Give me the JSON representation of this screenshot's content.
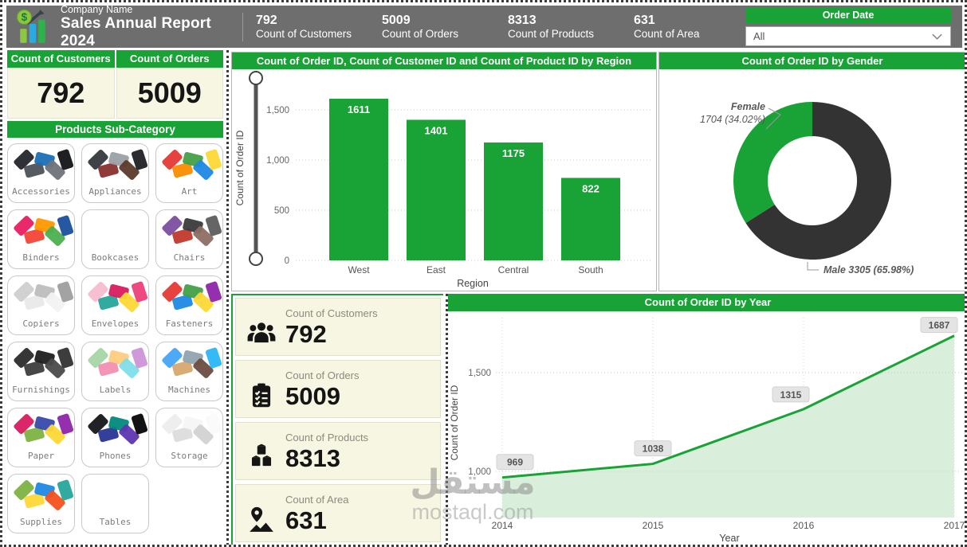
{
  "header": {
    "company_name": "Company Name",
    "report_title": "Sales Annual Report 2024",
    "kpis": [
      {
        "value": "792",
        "label": "Count of Customers"
      },
      {
        "value": "5009",
        "label": "Count of Orders"
      },
      {
        "value": "8313",
        "label": "Count of Products"
      },
      {
        "value": "631",
        "label": "Count of Area"
      }
    ],
    "slicer": {
      "title": "Order Date",
      "value": "All"
    }
  },
  "left_panel": {
    "cards": [
      {
        "label": "Count of Customers",
        "value": "792"
      },
      {
        "label": "Count of Orders",
        "value": "5009"
      }
    ],
    "subcategory_header": "Products Sub-Category",
    "items": [
      "Accessories",
      "Appliances",
      "Art",
      "Binders",
      "Bookcases",
      "Chairs",
      "Copiers",
      "Envelopes",
      "Fasteners",
      "Furnishings",
      "Labels",
      "Machines",
      "Paper",
      "Phones",
      "Storage",
      "Supplies",
      "Tables"
    ]
  },
  "kpi_cards": [
    {
      "label": "Count of Customers",
      "value": "792",
      "icon": "users-icon"
    },
    {
      "label": "Count of Orders",
      "value": "5009",
      "icon": "clipboard-icon"
    },
    {
      "label": "Count of Products",
      "value": "8313",
      "icon": "cubes-icon"
    },
    {
      "label": "Count of Area",
      "value": "631",
      "icon": "map-pin-icon"
    }
  ],
  "watermark": {
    "arabic": "مستقل",
    "domain": "mostaql.com"
  },
  "colors": {
    "accent_green": "#19a236",
    "header_gray": "#6e6e6e",
    "donut_dark": "#333333",
    "cream": "#f6f6e2",
    "area_fill": "#d9efdc",
    "chip_bg": "#e4e4e4"
  },
  "chart_data": [
    {
      "type": "bar",
      "title": "Count of Order ID, Count of Customer ID and Count of Product ID by Region",
      "categories": [
        "West",
        "East",
        "Central",
        "South"
      ],
      "values": [
        1611,
        1401,
        1175,
        822
      ],
      "xlabel": "Region",
      "ylabel": "Count of Order ID",
      "ylim": [
        0,
        1700
      ],
      "yticks": [
        0,
        500,
        1000,
        1500
      ],
      "ytick_labels": [
        "0",
        "500",
        "1,000",
        "1,500"
      ],
      "bar_color": "#19a236",
      "grid": "dotted-horizontal",
      "has_range_slider": true
    },
    {
      "type": "pie",
      "donut": true,
      "title": "Count of Order ID by Gender",
      "slices": [
        {
          "label": "Female",
          "value": 1704,
          "pct": "34.02%",
          "color": "#19a236",
          "callout_lines": [
            "Female",
            "1704 (34.02%)"
          ]
        },
        {
          "label": "Male",
          "value": 3305,
          "pct": "65.98%",
          "color": "#333333",
          "callout_lines": [
            "Male 3305 (65.98%)"
          ]
        }
      ]
    },
    {
      "type": "area",
      "title": "Count of Order ID by Year",
      "x": [
        "2014",
        "2015",
        "2016",
        "2017"
      ],
      "values": [
        969,
        1038,
        1315,
        1687
      ],
      "xlabel": "Year",
      "ylabel": "Count of Order ID",
      "yticks": [
        1000,
        1500
      ],
      "ytick_labels": [
        "1,000",
        "1,500"
      ],
      "ylim": [
        760,
        1800
      ],
      "line_color": "#19a236",
      "grid": "dotted-both"
    }
  ]
}
